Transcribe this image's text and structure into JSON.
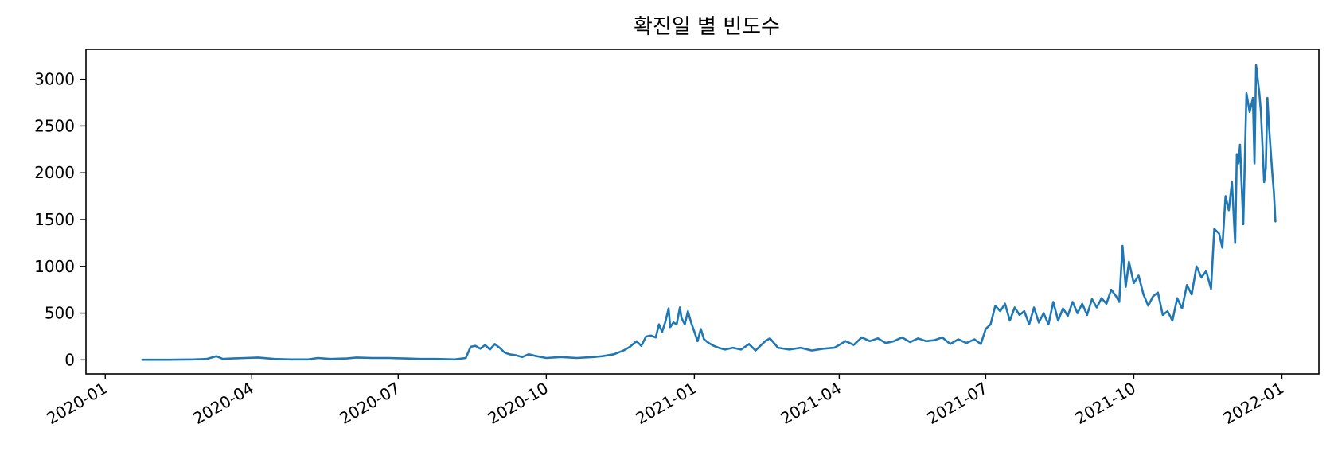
{
  "chart_data": {
    "type": "line",
    "title": "확진일 별 빈도수",
    "xlabel": "",
    "ylabel": "",
    "x_type": "date",
    "xlim": [
      "2019-12-20",
      "2022-01-24"
    ],
    "ylim": [
      -150,
      3320
    ],
    "x_ticks": [
      "2020-01-01",
      "2020-04-01",
      "2020-07-01",
      "2020-10-01",
      "2021-01-01",
      "2021-04-01",
      "2021-07-01",
      "2021-10-01",
      "2022-01-01"
    ],
    "x_tick_labels": [
      "2020-01",
      "2020-04",
      "2020-07",
      "2020-10",
      "2021-01",
      "2021-04",
      "2021-07",
      "2021-10",
      "2022-01"
    ],
    "y_ticks": [
      0,
      500,
      1000,
      1500,
      2000,
      2500,
      3000
    ],
    "y_tick_labels": [
      "0",
      "500",
      "1000",
      "1500",
      "2000",
      "2500",
      "3000"
    ],
    "grid": false,
    "line_color": "#1f77b4",
    "series": [
      {
        "name": "",
        "points": [
          [
            "2020-01-24",
            1
          ],
          [
            "2020-02-10",
            1
          ],
          [
            "2020-02-25",
            5
          ],
          [
            "2020-03-04",
            10
          ],
          [
            "2020-03-10",
            40
          ],
          [
            "2020-03-14",
            10
          ],
          [
            "2020-03-20",
            15
          ],
          [
            "2020-03-28",
            20
          ],
          [
            "2020-04-05",
            25
          ],
          [
            "2020-04-15",
            10
          ],
          [
            "2020-04-25",
            5
          ],
          [
            "2020-05-06",
            5
          ],
          [
            "2020-05-12",
            20
          ],
          [
            "2020-05-20",
            10
          ],
          [
            "2020-05-30",
            15
          ],
          [
            "2020-06-05",
            25
          ],
          [
            "2020-06-15",
            20
          ],
          [
            "2020-06-25",
            20
          ],
          [
            "2020-07-05",
            15
          ],
          [
            "2020-07-15",
            10
          ],
          [
            "2020-07-25",
            10
          ],
          [
            "2020-08-05",
            5
          ],
          [
            "2020-08-12",
            20
          ],
          [
            "2020-08-15",
            140
          ],
          [
            "2020-08-18",
            150
          ],
          [
            "2020-08-21",
            120
          ],
          [
            "2020-08-24",
            160
          ],
          [
            "2020-08-27",
            110
          ],
          [
            "2020-08-30",
            170
          ],
          [
            "2020-09-02",
            130
          ],
          [
            "2020-09-05",
            80
          ],
          [
            "2020-09-08",
            60
          ],
          [
            "2020-09-12",
            50
          ],
          [
            "2020-09-16",
            30
          ],
          [
            "2020-09-20",
            60
          ],
          [
            "2020-09-25",
            40
          ],
          [
            "2020-10-01",
            20
          ],
          [
            "2020-10-10",
            30
          ],
          [
            "2020-10-20",
            20
          ],
          [
            "2020-10-30",
            30
          ],
          [
            "2020-11-05",
            40
          ],
          [
            "2020-11-12",
            60
          ],
          [
            "2020-11-18",
            100
          ],
          [
            "2020-11-22",
            140
          ],
          [
            "2020-11-26",
            200
          ],
          [
            "2020-11-29",
            150
          ],
          [
            "2020-12-02",
            250
          ],
          [
            "2020-12-05",
            260
          ],
          [
            "2020-12-08",
            240
          ],
          [
            "2020-12-10",
            380
          ],
          [
            "2020-12-12",
            300
          ],
          [
            "2020-12-14",
            410
          ],
          [
            "2020-12-16",
            550
          ],
          [
            "2020-12-17",
            350
          ],
          [
            "2020-12-19",
            400
          ],
          [
            "2020-12-21",
            380
          ],
          [
            "2020-12-23",
            560
          ],
          [
            "2020-12-24",
            450
          ],
          [
            "2020-12-26",
            380
          ],
          [
            "2020-12-28",
            520
          ],
          [
            "2020-12-30",
            400
          ],
          [
            "2021-01-01",
            300
          ],
          [
            "2021-01-03",
            200
          ],
          [
            "2021-01-05",
            330
          ],
          [
            "2021-01-07",
            220
          ],
          [
            "2021-01-10",
            180
          ],
          [
            "2021-01-13",
            150
          ],
          [
            "2021-01-16",
            130
          ],
          [
            "2021-01-20",
            110
          ],
          [
            "2021-01-25",
            130
          ],
          [
            "2021-01-30",
            110
          ],
          [
            "2021-02-04",
            170
          ],
          [
            "2021-02-08",
            100
          ],
          [
            "2021-02-14",
            200
          ],
          [
            "2021-02-17",
            230
          ],
          [
            "2021-02-22",
            130
          ],
          [
            "2021-03-01",
            110
          ],
          [
            "2021-03-08",
            130
          ],
          [
            "2021-03-15",
            100
          ],
          [
            "2021-03-22",
            120
          ],
          [
            "2021-03-29",
            130
          ],
          [
            "2021-04-05",
            200
          ],
          [
            "2021-04-10",
            160
          ],
          [
            "2021-04-15",
            240
          ],
          [
            "2021-04-20",
            200
          ],
          [
            "2021-04-25",
            230
          ],
          [
            "2021-04-30",
            180
          ],
          [
            "2021-05-05",
            200
          ],
          [
            "2021-05-10",
            240
          ],
          [
            "2021-05-15",
            190
          ],
          [
            "2021-05-20",
            230
          ],
          [
            "2021-05-25",
            200
          ],
          [
            "2021-05-30",
            210
          ],
          [
            "2021-06-04",
            240
          ],
          [
            "2021-06-09",
            170
          ],
          [
            "2021-06-14",
            220
          ],
          [
            "2021-06-19",
            180
          ],
          [
            "2021-06-24",
            220
          ],
          [
            "2021-06-28",
            170
          ],
          [
            "2021-07-01",
            330
          ],
          [
            "2021-07-04",
            380
          ],
          [
            "2021-07-07",
            580
          ],
          [
            "2021-07-10",
            520
          ],
          [
            "2021-07-13",
            600
          ],
          [
            "2021-07-16",
            420
          ],
          [
            "2021-07-19",
            560
          ],
          [
            "2021-07-22",
            480
          ],
          [
            "2021-07-25",
            520
          ],
          [
            "2021-07-28",
            380
          ],
          [
            "2021-07-31",
            560
          ],
          [
            "2021-08-03",
            400
          ],
          [
            "2021-08-06",
            500
          ],
          [
            "2021-08-09",
            380
          ],
          [
            "2021-08-12",
            620
          ],
          [
            "2021-08-15",
            420
          ],
          [
            "2021-08-18",
            550
          ],
          [
            "2021-08-21",
            470
          ],
          [
            "2021-08-24",
            620
          ],
          [
            "2021-08-27",
            500
          ],
          [
            "2021-08-30",
            600
          ],
          [
            "2021-09-02",
            480
          ],
          [
            "2021-09-05",
            650
          ],
          [
            "2021-09-08",
            560
          ],
          [
            "2021-09-11",
            660
          ],
          [
            "2021-09-14",
            600
          ],
          [
            "2021-09-17",
            750
          ],
          [
            "2021-09-20",
            680
          ],
          [
            "2021-09-22",
            620
          ],
          [
            "2021-09-24",
            1220
          ],
          [
            "2021-09-26",
            780
          ],
          [
            "2021-09-28",
            1050
          ],
          [
            "2021-10-01",
            820
          ],
          [
            "2021-10-04",
            900
          ],
          [
            "2021-10-07",
            700
          ],
          [
            "2021-10-10",
            580
          ],
          [
            "2021-10-13",
            680
          ],
          [
            "2021-10-16",
            720
          ],
          [
            "2021-10-19",
            480
          ],
          [
            "2021-10-22",
            520
          ],
          [
            "2021-10-25",
            420
          ],
          [
            "2021-10-28",
            660
          ],
          [
            "2021-10-31",
            550
          ],
          [
            "2021-11-03",
            800
          ],
          [
            "2021-11-06",
            700
          ],
          [
            "2021-11-09",
            1000
          ],
          [
            "2021-11-12",
            880
          ],
          [
            "2021-11-15",
            950
          ],
          [
            "2021-11-18",
            760
          ],
          [
            "2021-11-20",
            1400
          ],
          [
            "2021-11-23",
            1350
          ],
          [
            "2021-11-25",
            1200
          ],
          [
            "2021-11-27",
            1750
          ],
          [
            "2021-11-29",
            1600
          ],
          [
            "2021-12-01",
            1900
          ],
          [
            "2021-12-03",
            1250
          ],
          [
            "2021-12-04",
            2200
          ],
          [
            "2021-12-05",
            2100
          ],
          [
            "2021-12-06",
            2300
          ],
          [
            "2021-12-08",
            1450
          ],
          [
            "2021-12-10",
            2850
          ],
          [
            "2021-12-12",
            2650
          ],
          [
            "2021-12-14",
            2800
          ],
          [
            "2021-12-15",
            2100
          ],
          [
            "2021-12-16",
            3150
          ],
          [
            "2021-12-18",
            2850
          ],
          [
            "2021-12-19",
            2650
          ],
          [
            "2021-12-21",
            1900
          ],
          [
            "2021-12-22",
            2050
          ],
          [
            "2021-12-23",
            2800
          ],
          [
            "2021-12-24",
            2500
          ],
          [
            "2021-12-26",
            2000
          ],
          [
            "2021-12-27",
            1800
          ],
          [
            "2021-12-28",
            1480
          ]
        ]
      }
    ]
  }
}
